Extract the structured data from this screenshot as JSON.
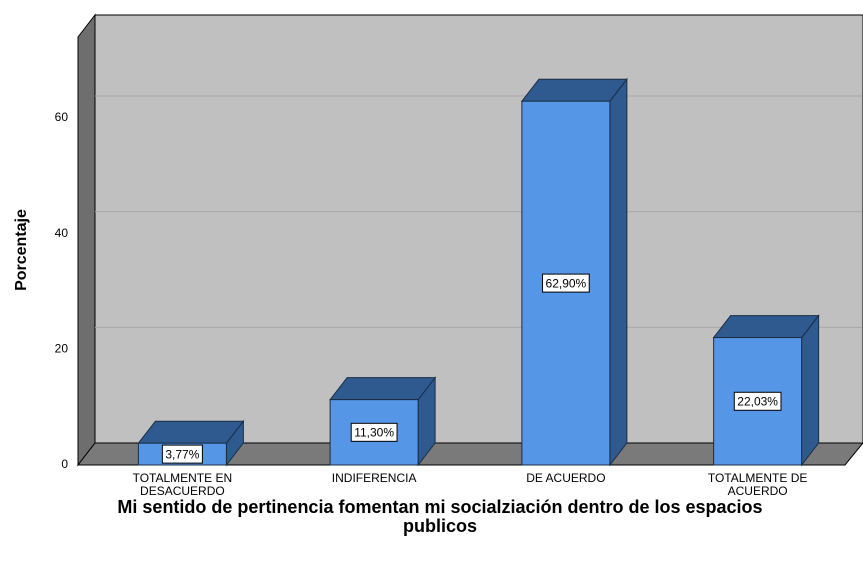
{
  "chart_data": {
    "type": "bar3d",
    "title": "Mi sentido de pertinencia fomentan mi socialziación dentro de los espacios publicos",
    "y_label": "Porcentaje",
    "categories": [
      "TOTALMENTE EN DESACUERDO",
      "INDIFERENCIA",
      "DE ACUERDO",
      "TOTALMENTE DE ACUERDO"
    ],
    "values": [
      3.77,
      11.3,
      62.9,
      22.03
    ],
    "value_labels": [
      "3,77%",
      "11,30%",
      "62,90%",
      "22,03%"
    ],
    "color": "#5596e6",
    "ylim": [
      0,
      74
    ],
    "yticks": [
      0,
      20,
      40,
      60
    ],
    "grid": true
  }
}
